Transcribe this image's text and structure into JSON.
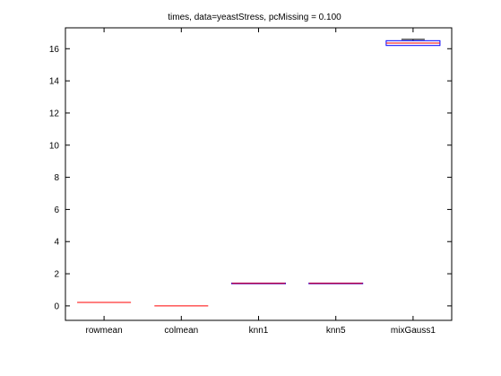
{
  "chart_data": {
    "type": "box",
    "title": "times, data=yeastStress, pcMissing = 0.100",
    "xlabel": "",
    "ylabel": "",
    "ylim": [
      -0.9,
      17.3
    ],
    "y_ticks": [
      0,
      2,
      4,
      6,
      8,
      10,
      12,
      14,
      16
    ],
    "categories": [
      "rowmean",
      "colmean",
      "knn1",
      "knn5",
      "mixGauss1"
    ],
    "boxes": [
      {
        "name": "rowmean",
        "min": 0.22,
        "q1": 0.22,
        "median": 0.22,
        "q3": 0.22,
        "max": 0.22
      },
      {
        "name": "colmean",
        "min": 0.0,
        "q1": 0.0,
        "median": 0.0,
        "q3": 0.0,
        "max": 0.0
      },
      {
        "name": "knn1",
        "min": 1.38,
        "q1": 1.38,
        "median": 1.4,
        "q3": 1.42,
        "max": 1.42
      },
      {
        "name": "knn5",
        "min": 1.38,
        "q1": 1.38,
        "median": 1.4,
        "q3": 1.42,
        "max": 1.42
      },
      {
        "name": "mixGauss1",
        "min": 16.2,
        "q1": 16.2,
        "median": 16.35,
        "q3": 16.5,
        "max": 16.58
      }
    ],
    "grid": false,
    "colors": {
      "box": "#0000ff",
      "median": "#ff0000",
      "whisker": "#000000",
      "axis": "#000000"
    }
  }
}
